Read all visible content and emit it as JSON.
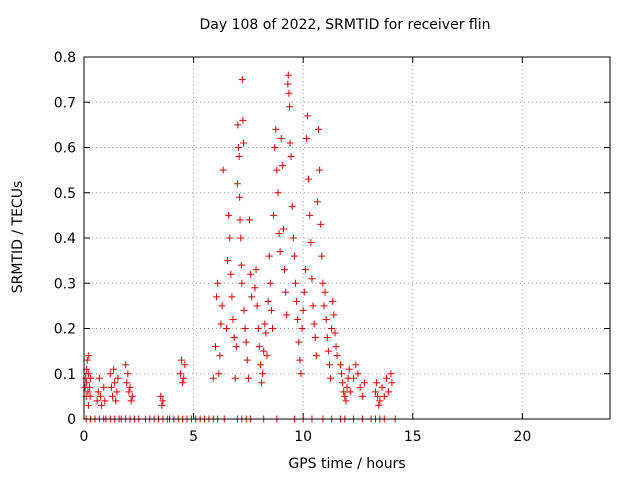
{
  "chart_data": {
    "type": "scatter",
    "title": "Day 108 of 2022, SRMTID for receiver flin",
    "xlabel": "GPS time / hours",
    "ylabel": "SRMTID / TECUs",
    "xlim": [
      0,
      24
    ],
    "ylim": [
      0,
      0.8
    ],
    "xticks": [
      0,
      5,
      10,
      15,
      20
    ],
    "yticks": [
      0,
      0.1,
      0.2,
      0.3,
      0.4,
      0.5,
      0.6,
      0.7,
      0.8
    ],
    "grid": true,
    "marker": "+",
    "series": [
      {
        "name": "SRMTID",
        "color": "#e00000",
        "points": [
          [
            0.05,
            0.07
          ],
          [
            0.08,
            0.09
          ],
          [
            0.1,
            0.05
          ],
          [
            0.12,
            0.08
          ],
          [
            0.15,
            0.13
          ],
          [
            0.18,
            0.06
          ],
          [
            0.2,
            0.1
          ],
          [
            0.22,
            0.14
          ],
          [
            0.25,
            0.07
          ],
          [
            0.28,
            0.05
          ],
          [
            0.3,
            0.09
          ],
          [
            0.12,
            0.11
          ],
          [
            0.2,
            0.03
          ],
          [
            0.6,
            0.04
          ],
          [
            0.65,
            0.06
          ],
          [
            0.7,
            0.09
          ],
          [
            0.75,
            0.05
          ],
          [
            0.8,
            0.03
          ],
          [
            0.9,
            0.07
          ],
          [
            0.95,
            0.04
          ],
          [
            1.2,
            0.1
          ],
          [
            1.25,
            0.07
          ],
          [
            1.3,
            0.05
          ],
          [
            1.35,
            0.11
          ],
          [
            1.4,
            0.08
          ],
          [
            1.45,
            0.04
          ],
          [
            1.5,
            0.06
          ],
          [
            1.55,
            0.09
          ],
          [
            1.9,
            0.12
          ],
          [
            1.95,
            0.08
          ],
          [
            2.0,
            0.1
          ],
          [
            2.05,
            0.06
          ],
          [
            2.1,
            0.07
          ],
          [
            2.15,
            0.04
          ],
          [
            2.2,
            0.05
          ],
          [
            3.5,
            0.05
          ],
          [
            3.55,
            0.03
          ],
          [
            3.6,
            0.04
          ],
          [
            4.4,
            0.1
          ],
          [
            4.45,
            0.13
          ],
          [
            4.5,
            0.08
          ],
          [
            4.55,
            0.09
          ],
          [
            4.6,
            0.12
          ],
          [
            5.9,
            0.09
          ],
          [
            6.0,
            0.16
          ],
          [
            6.05,
            0.27
          ],
          [
            6.1,
            0.3
          ],
          [
            6.15,
            0.1
          ],
          [
            6.2,
            0.14
          ],
          [
            6.25,
            0.21
          ],
          [
            6.3,
            0.25
          ],
          [
            6.35,
            0.55
          ],
          [
            6.5,
            0.2
          ],
          [
            6.55,
            0.35
          ],
          [
            6.6,
            0.45
          ],
          [
            6.65,
            0.4
          ],
          [
            6.7,
            0.32
          ],
          [
            6.75,
            0.27
          ],
          [
            6.8,
            0.22
          ],
          [
            6.85,
            0.18
          ],
          [
            6.9,
            0.09
          ],
          [
            6.95,
            0.16
          ],
          [
            7.0,
            0.52
          ],
          [
            7.02,
            0.65
          ],
          [
            7.05,
            0.6
          ],
          [
            7.08,
            0.58
          ],
          [
            7.1,
            0.49
          ],
          [
            7.12,
            0.44
          ],
          [
            7.15,
            0.4
          ],
          [
            7.18,
            0.34
          ],
          [
            7.2,
            0.3
          ],
          [
            7.22,
            0.75
          ],
          [
            7.25,
            0.66
          ],
          [
            7.28,
            0.61
          ],
          [
            7.3,
            0.24
          ],
          [
            7.35,
            0.2
          ],
          [
            7.4,
            0.17
          ],
          [
            7.45,
            0.13
          ],
          [
            7.5,
            0.09
          ],
          [
            7.55,
            0.44
          ],
          [
            7.6,
            0.32
          ],
          [
            7.65,
            0.27
          ],
          [
            7.8,
            0.29
          ],
          [
            7.85,
            0.33
          ],
          [
            7.9,
            0.25
          ],
          [
            7.95,
            0.2
          ],
          [
            8.0,
            0.16
          ],
          [
            8.05,
            0.12
          ],
          [
            8.1,
            0.08
          ],
          [
            8.15,
            0.1
          ],
          [
            8.2,
            0.15
          ],
          [
            8.25,
            0.21
          ],
          [
            8.3,
            0.19
          ],
          [
            8.35,
            0.14
          ],
          [
            8.4,
            0.26
          ],
          [
            8.45,
            0.36
          ],
          [
            8.5,
            0.3
          ],
          [
            8.55,
            0.24
          ],
          [
            8.6,
            0.2
          ],
          [
            8.65,
            0.45
          ],
          [
            8.7,
            0.6
          ],
          [
            8.75,
            0.64
          ],
          [
            8.8,
            0.55
          ],
          [
            8.85,
            0.5
          ],
          [
            8.9,
            0.41
          ],
          [
            8.95,
            0.37
          ],
          [
            9.0,
            0.62
          ],
          [
            9.05,
            0.56
          ],
          [
            9.1,
            0.42
          ],
          [
            9.15,
            0.33
          ],
          [
            9.2,
            0.28
          ],
          [
            9.25,
            0.23
          ],
          [
            9.3,
            0.74
          ],
          [
            9.32,
            0.76
          ],
          [
            9.35,
            0.72
          ],
          [
            9.38,
            0.69
          ],
          [
            9.4,
            0.61
          ],
          [
            9.45,
            0.58
          ],
          [
            9.5,
            0.47
          ],
          [
            9.55,
            0.4
          ],
          [
            9.6,
            0.36
          ],
          [
            9.65,
            0.3
          ],
          [
            9.7,
            0.26
          ],
          [
            9.75,
            0.22
          ],
          [
            9.8,
            0.17
          ],
          [
            9.85,
            0.13
          ],
          [
            9.9,
            0.1
          ],
          [
            9.95,
            0.2
          ],
          [
            10.0,
            0.24
          ],
          [
            10.05,
            0.28
          ],
          [
            10.1,
            0.33
          ],
          [
            10.15,
            0.62
          ],
          [
            10.2,
            0.67
          ],
          [
            10.25,
            0.53
          ],
          [
            10.3,
            0.45
          ],
          [
            10.35,
            0.39
          ],
          [
            10.4,
            0.31
          ],
          [
            10.45,
            0.25
          ],
          [
            10.5,
            0.21
          ],
          [
            10.55,
            0.18
          ],
          [
            10.6,
            0.14
          ],
          [
            10.65,
            0.48
          ],
          [
            10.7,
            0.64
          ],
          [
            10.75,
            0.55
          ],
          [
            10.8,
            0.43
          ],
          [
            10.85,
            0.36
          ],
          [
            10.9,
            0.3
          ],
          [
            10.95,
            0.25
          ],
          [
            11.0,
            0.28
          ],
          [
            11.05,
            0.22
          ],
          [
            11.1,
            0.18
          ],
          [
            11.15,
            0.15
          ],
          [
            11.2,
            0.12
          ],
          [
            11.25,
            0.09
          ],
          [
            11.3,
            0.2
          ],
          [
            11.35,
            0.26
          ],
          [
            11.4,
            0.23
          ],
          [
            11.45,
            0.19
          ],
          [
            11.5,
            0.16
          ],
          [
            11.55,
            0.14
          ],
          [
            11.7,
            0.12
          ],
          [
            11.75,
            0.1
          ],
          [
            11.8,
            0.08
          ],
          [
            11.85,
            0.06
          ],
          [
            11.9,
            0.05
          ],
          [
            11.95,
            0.04
          ],
          [
            12.0,
            0.07
          ],
          [
            12.05,
            0.09
          ],
          [
            12.1,
            0.11
          ],
          [
            12.15,
            0.06
          ],
          [
            12.3,
            0.09
          ],
          [
            12.4,
            0.12
          ],
          [
            12.5,
            0.1
          ],
          [
            12.6,
            0.07
          ],
          [
            12.7,
            0.05
          ],
          [
            12.8,
            0.08
          ],
          [
            13.3,
            0.06
          ],
          [
            13.35,
            0.08
          ],
          [
            13.4,
            0.05
          ],
          [
            13.45,
            0.03
          ],
          [
            13.5,
            0.04
          ],
          [
            13.6,
            0.07
          ],
          [
            13.7,
            0.05
          ],
          [
            13.8,
            0.09
          ],
          [
            13.9,
            0.06
          ],
          [
            14.0,
            0.1
          ],
          [
            14.05,
            0.08
          ]
        ],
        "baseline_x": [
          0.1,
          0.3,
          0.5,
          0.7,
          0.9,
          1.0,
          1.2,
          1.4,
          1.6,
          1.7,
          1.9,
          2.1,
          2.3,
          2.5,
          2.8,
          3.0,
          3.2,
          3.4,
          3.6,
          3.8,
          3.9,
          4.1,
          4.3,
          4.5,
          4.7,
          4.9,
          5.1,
          5.3,
          5.5,
          5.7,
          5.9,
          6.1,
          6.4,
          7.0,
          7.2,
          7.4,
          7.6,
          8.2,
          8.8,
          9.6,
          10.0,
          10.4,
          10.9,
          11.3,
          11.7,
          11.9,
          12.3,
          12.7,
          13.1,
          13.3,
          13.5,
          13.7,
          14.2
        ]
      }
    ]
  }
}
